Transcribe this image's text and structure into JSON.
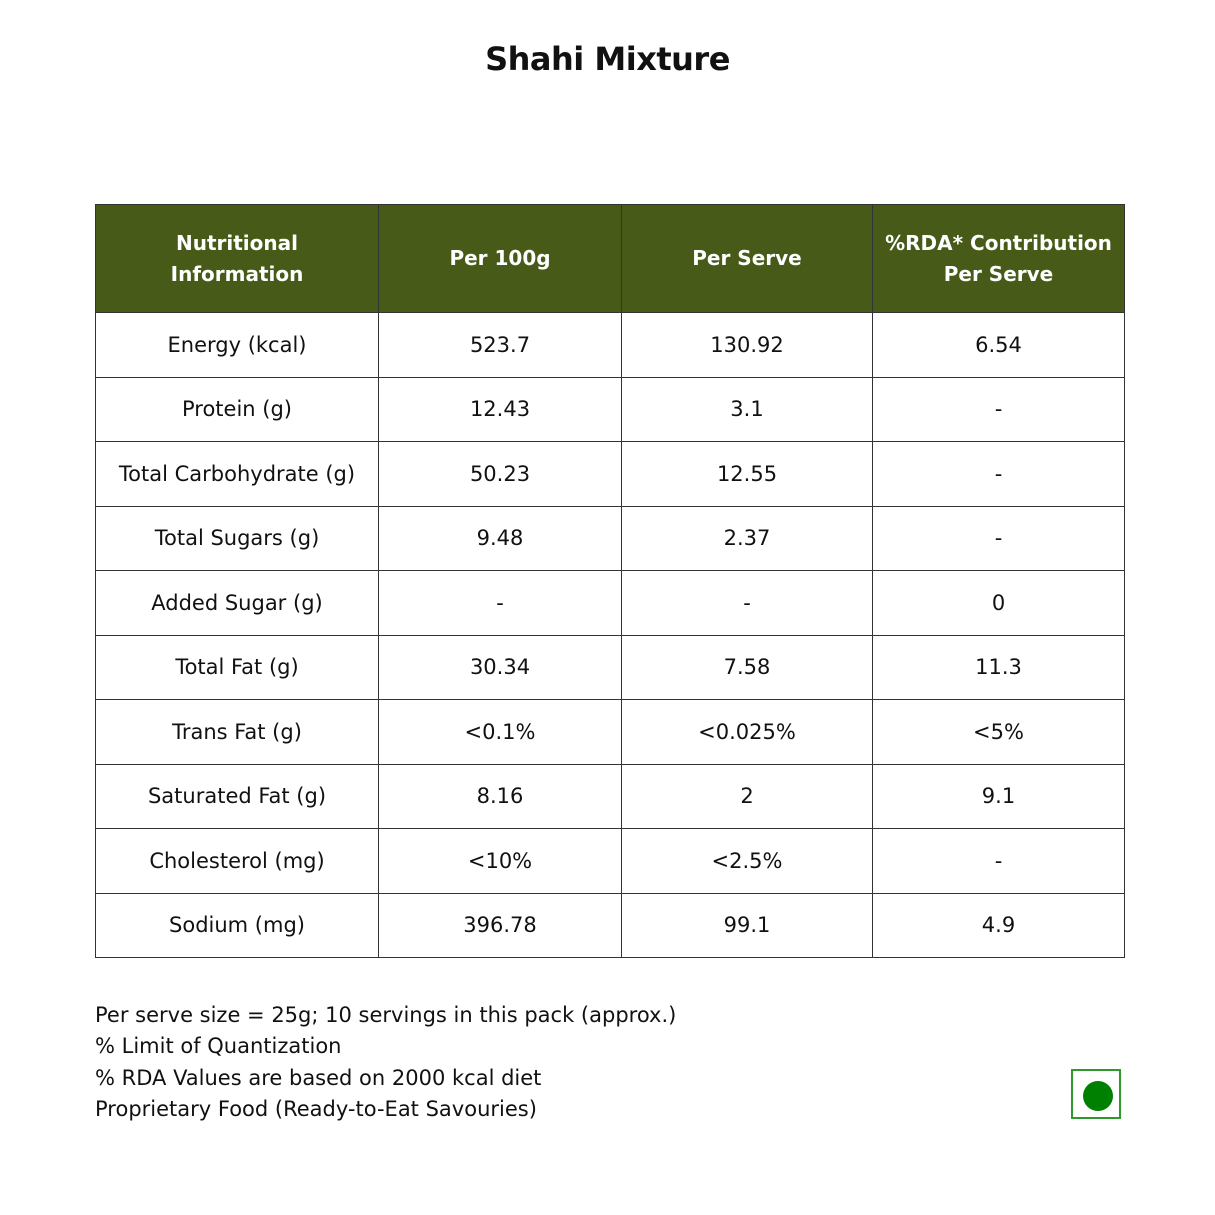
{
  "title": "Shahi Mixture",
  "table": {
    "headers": [
      "Nutritional Information",
      "Per 100g",
      "Per Serve",
      "%RDA* Contribution Per Serve"
    ],
    "rows": [
      [
        "Energy (kcal)",
        "523.7",
        "130.92",
        "6.54"
      ],
      [
        "Protein (g)",
        "12.43",
        "3.1",
        "-"
      ],
      [
        "Total Carbohydrate (g)",
        "50.23",
        "12.55",
        "-"
      ],
      [
        "Total Sugars (g)",
        "9.48",
        "2.37",
        "-"
      ],
      [
        "Added Sugar (g)",
        "-",
        "-",
        "0"
      ],
      [
        "Total Fat (g)",
        "30.34",
        "7.58",
        "11.3"
      ],
      [
        "Trans Fat (g)",
        "<0.1%",
        "<0.025%",
        "<5%"
      ],
      [
        "Saturated Fat (g)",
        "8.16",
        "2",
        "9.1"
      ],
      [
        "Cholesterol (mg)",
        "<10%",
        "<2.5%",
        "-"
      ],
      [
        "Sodium (mg)",
        "396.78",
        "99.1",
        "4.9"
      ]
    ]
  },
  "notes": [
    "Per serve size = 25g; 10 servings in this pack (approx.)",
    "% Limit of Quantization",
    "% RDA Values are based on 2000 kcal diet",
    "Proprietary Food (Ready-to-Eat Savouries)"
  ],
  "colors": {
    "header_bg": "#475a18",
    "veg_mark": "#008000"
  },
  "icons": {
    "veg_mark": "veg-symbol-icon"
  }
}
